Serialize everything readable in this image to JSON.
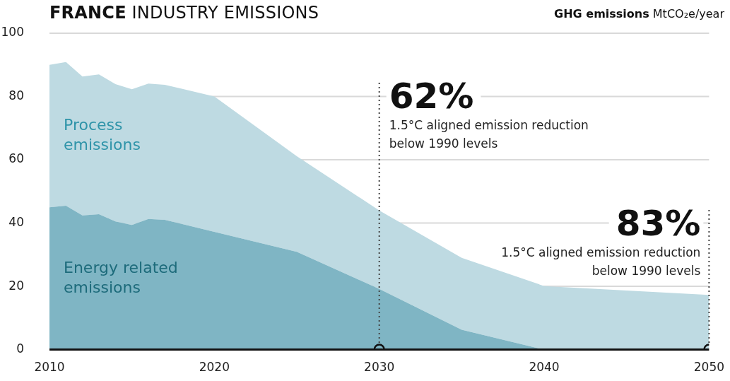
{
  "chart_data": {
    "type": "area",
    "stacked": true,
    "title": "FRANCE INDUSTRY EMISSIONS",
    "ylabel": "GHG emissions MtCO₂e/year",
    "x": [
      2010,
      2011,
      2012,
      2013,
      2014,
      2015,
      2016,
      2017,
      2020,
      2025,
      2030,
      2035,
      2040,
      2050
    ],
    "series": [
      {
        "name": "Energy related emissions",
        "color": "#7fb5c4",
        "values": [
          45.0,
          45.5,
          42.4,
          42.8,
          40.5,
          39.4,
          41.3,
          41.0,
          37.2,
          30.9,
          19.2,
          6.3,
          0,
          0
        ]
      },
      {
        "name": "Process emissions",
        "color": "#bedae2",
        "values": [
          45.0,
          45.4,
          43.9,
          44.2,
          43.4,
          42.9,
          42.8,
          42.7,
          42.8,
          30.2,
          24.8,
          22.7,
          20.1,
          17.3
        ]
      },
      {
        "type": "scatter",
        "color": "#111111",
        "x": [
          2030,
          2050
        ],
        "values": [
          0,
          0
        ]
      }
    ],
    "xlim": [
      2010,
      2050
    ],
    "xticks": [
      2010,
      2020,
      2030,
      2040,
      2050
    ],
    "ylim": [
      0,
      100
    ],
    "yticks": [
      0,
      20,
      40,
      60,
      80,
      100
    ],
    "grid": "y",
    "legend": false,
    "ref_lines": [
      {
        "axis": "x",
        "value": 2030,
        "line_style": "dotted",
        "color": "#444444"
      },
      {
        "axis": "x",
        "value": 2050,
        "line_style": "dotted",
        "color": "#444444"
      }
    ],
    "annotations": [
      "62%",
      "1.5°C aligned emission reduction below 1990 levels",
      "83%",
      "1.5°C aligned emission reduction below 1990 levels"
    ]
  }
}
